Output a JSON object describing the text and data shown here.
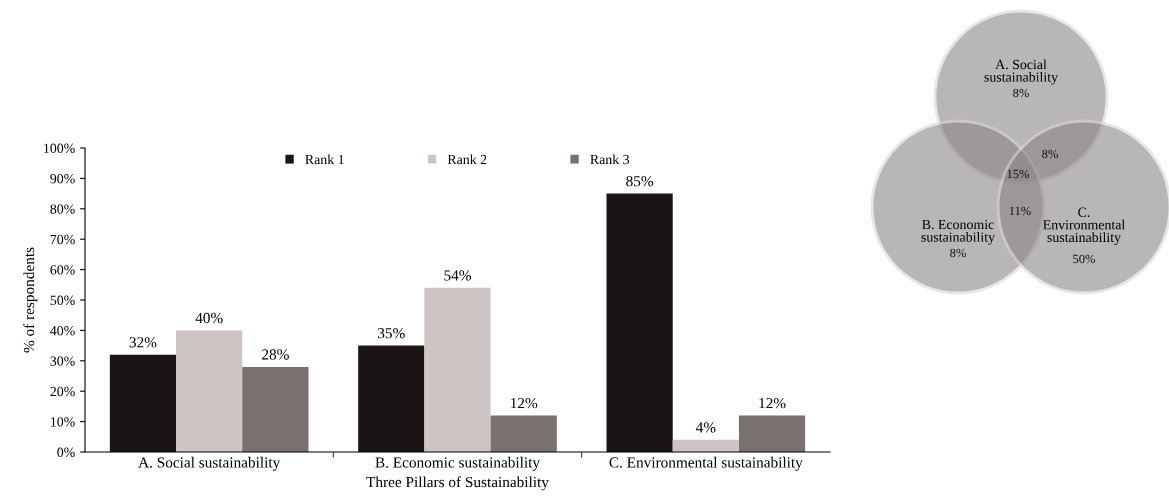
{
  "chart_data": [
    {
      "type": "bar",
      "xlabel": "Three Pillars of Sustainability",
      "ylabel": "% of respondents",
      "categories": [
        "A. Social sustainability",
        "B. Economic sustainability",
        "C. Environmental sustainability"
      ],
      "series": [
        {
          "name": "Rank 1",
          "color": "#1a1414",
          "values": [
            32,
            35,
            85
          ],
          "value_labels": [
            "32%",
            "35%",
            "85%"
          ]
        },
        {
          "name": "Rank 2",
          "color": "#cdc5c4",
          "values": [
            40,
            54,
            4
          ],
          "value_labels": [
            "40%",
            "54%",
            "4%"
          ]
        },
        {
          "name": "Rank 3",
          "color": "#7a7070",
          "values": [
            28,
            12,
            12
          ],
          "value_labels": [
            "28%",
            "12%",
            "12%"
          ]
        }
      ],
      "ylim": [
        0,
        100
      ],
      "yticks": [
        {
          "value": 0,
          "label": "0%"
        },
        {
          "value": 10,
          "label": "10%"
        },
        {
          "value": 20,
          "label": "20%"
        },
        {
          "value": 30,
          "label": "30%"
        },
        {
          "value": 40,
          "label": "40%"
        },
        {
          "value": 50,
          "label": "50%"
        },
        {
          "value": 60,
          "label": "60%"
        },
        {
          "value": 70,
          "label": "70%"
        },
        {
          "value": 80,
          "label": "80%"
        },
        {
          "value": 90,
          "label": "90%"
        },
        {
          "value": 100,
          "label": "100%"
        }
      ],
      "legend": "top",
      "grid": false
    },
    {
      "type": "other",
      "categories": [
        "A. Social sustainability",
        "B. Economic sustainability",
        "C. Environmental sustainability",
        null,
        null,
        null
      ],
      "value_labels": [
        "8%",
        "8%",
        "50%",
        "8%",
        "15%",
        "11%"
      ],
      "color": "#8c8689"
    }
  ]
}
